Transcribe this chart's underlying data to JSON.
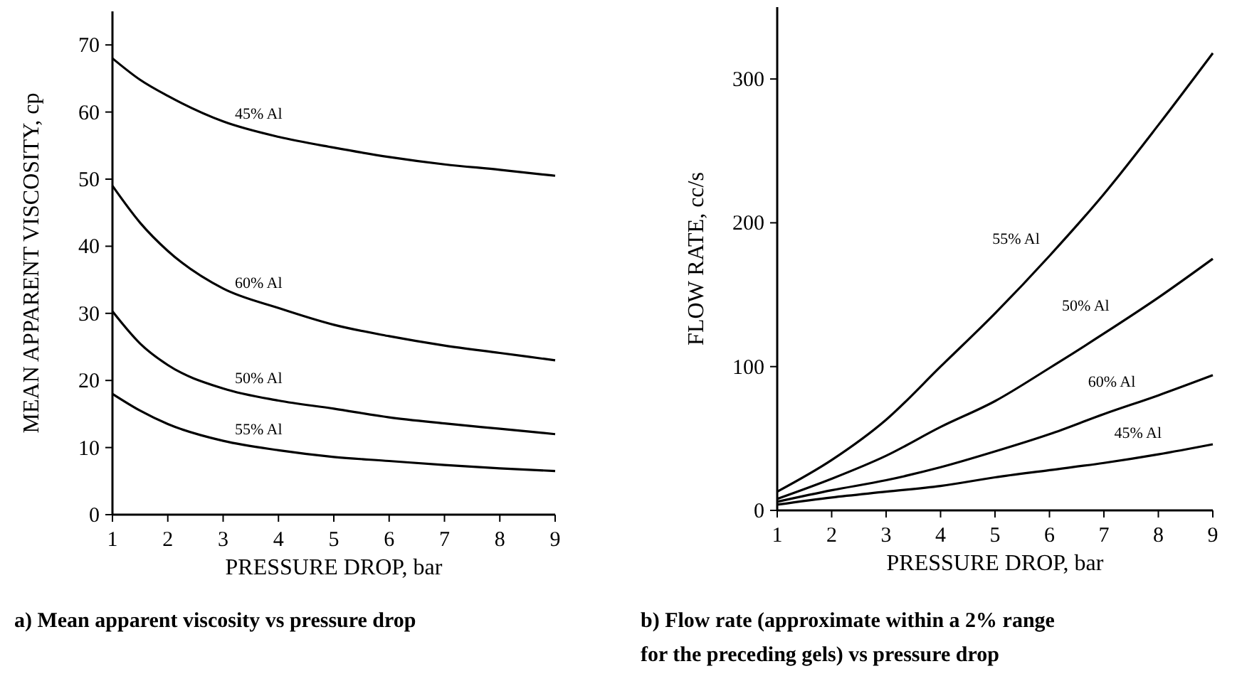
{
  "chart_data": [
    {
      "type": "line",
      "title": "a) Mean apparent viscosity vs pressure drop",
      "xlabel": "PRESSURE DROP, bar",
      "ylabel": "MEAN APPARENT VISCOSITY, cp",
      "x": [
        1,
        1.5,
        2,
        3,
        4,
        5,
        6,
        7,
        8,
        9
      ],
      "xlim": [
        1,
        9
      ],
      "xticks": [
        1,
        2,
        3,
        4,
        5,
        6,
        7,
        8,
        9
      ],
      "ylim": [
        0,
        75
      ],
      "yticks": [
        0,
        10,
        20,
        30,
        40,
        50,
        60,
        70
      ],
      "grid": false,
      "marker": "none",
      "line_style": "solid",
      "series": [
        {
          "name": "45% Al",
          "color": "#000000",
          "values": [
            68,
            64.8,
            62.4,
            58.6,
            56.3,
            54.7,
            53.3,
            52.2,
            51.4,
            50.5
          ]
        },
        {
          "name": "60% Al",
          "color": "#000000",
          "values": [
            49,
            43.5,
            39.3,
            33.7,
            30.8,
            28.3,
            26.6,
            25.2,
            24.1,
            23.0
          ]
        },
        {
          "name": "50% Al",
          "color": "#000000",
          "values": [
            30.3,
            25.5,
            22.3,
            18.8,
            17.0,
            15.8,
            14.5,
            13.6,
            12.8,
            12.0
          ]
        },
        {
          "name": "55% Al",
          "color": "#000000",
          "values": [
            18,
            15.5,
            13.5,
            11.0,
            9.6,
            8.6,
            8.0,
            7.4,
            6.9,
            6.5
          ]
        }
      ]
    },
    {
      "type": "line",
      "title": "b) Flow rate (approximate within a 2% range for the preceding gels) vs pressure drop",
      "xlabel": "PRESSURE DROP, bar",
      "ylabel": "FLOW RATE, cc/s",
      "x": [
        1,
        2,
        3,
        4,
        5,
        6,
        7,
        8,
        9
      ],
      "xlim": [
        1,
        9
      ],
      "xticks": [
        1,
        2,
        3,
        4,
        5,
        6,
        7,
        8,
        9
      ],
      "ylim": [
        0,
        350
      ],
      "yticks": [
        0,
        100,
        200,
        300
      ],
      "grid": false,
      "marker": "none",
      "line_style": "solid",
      "series": [
        {
          "name": "55% Al",
          "color": "#000000",
          "values": [
            13,
            35,
            63,
            100,
            137,
            177,
            220,
            268,
            318
          ]
        },
        {
          "name": "50% Al",
          "color": "#000000",
          "values": [
            8,
            22,
            38,
            58,
            76,
            99,
            123,
            148,
            175
          ]
        },
        {
          "name": "60% Al",
          "color": "#000000",
          "values": [
            6,
            14,
            21,
            30,
            41,
            53,
            67,
            80,
            94
          ]
        },
        {
          "name": "45% Al",
          "color": "#000000",
          "values": [
            4,
            9,
            13,
            17,
            23,
            28,
            33,
            39,
            46
          ]
        }
      ]
    }
  ]
}
